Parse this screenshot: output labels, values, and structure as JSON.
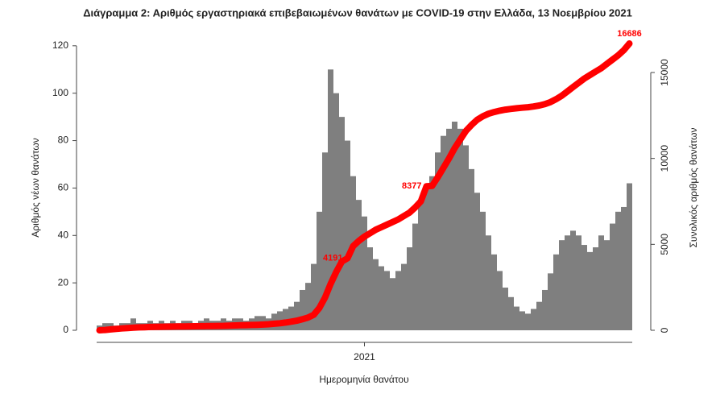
{
  "chart_data": {
    "type": "bar",
    "title": "Διάγραμμα 2: Αριθμός εργαστηριακά επιβεβαιωμένων θανάτων με COVID-19 στην Ελλάδα, 13 Νοεμβρίου 2021",
    "xlabel": "Ημερομηνία θανάτου",
    "ylabel": "Αριθμός νέων θανάτων",
    "y2label": "Συνολικός αριθμός θανάτων",
    "categories": [
      null,
      null,
      null,
      null,
      null,
      null,
      null,
      null,
      null,
      null,
      null,
      null,
      null,
      null,
      null,
      null,
      null,
      null,
      null,
      null,
      null,
      null,
      null,
      null,
      null,
      null,
      null,
      null,
      null,
      null,
      null,
      null,
      null,
      null,
      null,
      null,
      null,
      null,
      null,
      null,
      null,
      null,
      null,
      null,
      null,
      null,
      null,
      "2021",
      null,
      null,
      null,
      null,
      null,
      null,
      null,
      null,
      null,
      null,
      null,
      null,
      null,
      null,
      null,
      null,
      null,
      null,
      null,
      null,
      null,
      null,
      null,
      null,
      null,
      null,
      null,
      null,
      null,
      null,
      null,
      null,
      null,
      null,
      null,
      null,
      null,
      null,
      null,
      null,
      null,
      null,
      null,
      null,
      null,
      null,
      null
    ],
    "series": [
      {
        "color": "#7f7f7f",
        "values": [
          2,
          3,
          3,
          2,
          3,
          3,
          5,
          3,
          3,
          4,
          3,
          4,
          3,
          4,
          3,
          4,
          4,
          3,
          4,
          5,
          4,
          4,
          5,
          4,
          5,
          5,
          4,
          5,
          6,
          6,
          5,
          7,
          8,
          9,
          10,
          12,
          17,
          20,
          28,
          50,
          75,
          110,
          100,
          90,
          80,
          65,
          55,
          48,
          35,
          30,
          27,
          25,
          22,
          25,
          28,
          35,
          45,
          55,
          60,
          65,
          75,
          82,
          85,
          88,
          85,
          78,
          68,
          58,
          50,
          40,
          32,
          25,
          18,
          14,
          10,
          8,
          7,
          9,
          12,
          17,
          24,
          32,
          38,
          40,
          42,
          40,
          36,
          33,
          35,
          40,
          38,
          45,
          50,
          52,
          62
        ]
      },
      {
        "type": "line",
        "axis": "y2",
        "color": "#ff0000",
        "values": [
          0,
          20,
          50,
          80,
          110,
          130,
          150,
          170,
          180,
          190,
          200,
          205,
          210,
          215,
          220,
          225,
          230,
          235,
          240,
          245,
          250,
          255,
          260,
          270,
          280,
          290,
          300,
          310,
          320,
          335,
          350,
          380,
          410,
          450,
          500,
          560,
          640,
          740,
          900,
          1300,
          1900,
          2700,
          3400,
          4000,
          4191,
          4900,
          5200,
          5450,
          5650,
          5850,
          6000,
          6150,
          6300,
          6450,
          6650,
          6850,
          7150,
          7500,
          8377,
          8400,
          8900,
          9450,
          10000,
          10600,
          11100,
          11600,
          11950,
          12250,
          12450,
          12600,
          12700,
          12780,
          12840,
          12880,
          12920,
          12950,
          12980,
          13020,
          13080,
          13160,
          13280,
          13450,
          13650,
          13900,
          14150,
          14400,
          14650,
          14850,
          15050,
          15250,
          15500,
          15750,
          16000,
          16300,
          16686
        ],
        "value_labels": [
          null,
          null,
          null,
          null,
          null,
          null,
          null,
          null,
          null,
          null,
          null,
          null,
          null,
          null,
          null,
          null,
          null,
          null,
          null,
          null,
          null,
          null,
          null,
          null,
          null,
          null,
          null,
          null,
          null,
          null,
          null,
          null,
          null,
          null,
          null,
          null,
          null,
          null,
          null,
          null,
          null,
          null,
          null,
          null,
          "4191",
          null,
          null,
          null,
          null,
          null,
          null,
          null,
          null,
          null,
          null,
          null,
          null,
          null,
          "8377",
          null,
          null,
          null,
          null,
          null,
          null,
          null,
          null,
          null,
          null,
          null,
          null,
          null,
          null,
          null,
          null,
          null,
          null,
          null,
          null,
          null,
          null,
          null,
          null,
          null,
          null,
          null,
          null,
          null,
          null,
          null,
          null,
          null,
          null,
          null,
          "16686"
        ]
      }
    ],
    "ylim": [
      0,
      123
    ],
    "yticks": [
      0,
      20,
      40,
      60,
      80,
      100,
      120
    ],
    "y2lim": [
      0,
      16969
    ],
    "y2ticks": [
      0,
      5000,
      10000,
      15000
    ]
  }
}
